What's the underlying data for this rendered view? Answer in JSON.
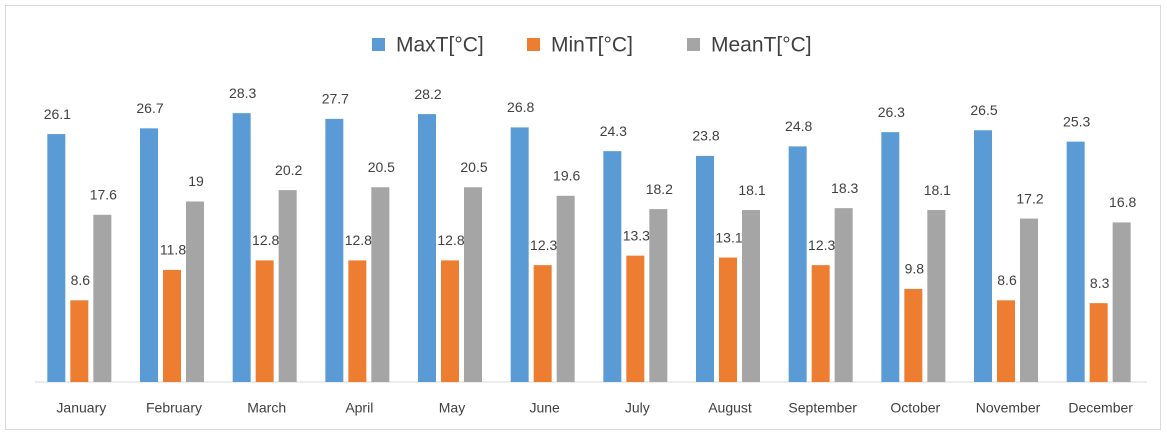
{
  "chart_data": {
    "type": "bar",
    "categories": [
      "January",
      "February",
      "March",
      "April",
      "May",
      "June",
      "July",
      "August",
      "September",
      "October",
      "November",
      "December"
    ],
    "series": [
      {
        "name": "MaxT[°C]",
        "color": "#5b9bd5",
        "values": [
          26.1,
          26.7,
          28.3,
          27.7,
          28.2,
          26.8,
          24.3,
          23.8,
          24.8,
          26.3,
          26.5,
          25.3
        ]
      },
      {
        "name": "MinT[°C]",
        "color": "#ed7d31",
        "values": [
          8.6,
          11.8,
          12.8,
          12.8,
          12.8,
          12.3,
          13.3,
          13.1,
          12.3,
          9.8,
          8.6,
          8.3
        ]
      },
      {
        "name": "MeanT[°C]",
        "color": "#a5a5a5",
        "values": [
          17.6,
          19,
          20.2,
          20.5,
          20.5,
          19.6,
          18.2,
          18.1,
          18.3,
          18.1,
          17.2,
          16.8
        ]
      }
    ],
    "ylim": [
      0,
      30
    ],
    "legend": "top"
  }
}
